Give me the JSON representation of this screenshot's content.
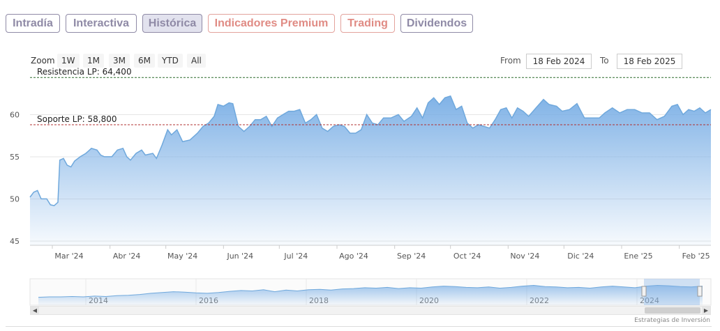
{
  "tabs": [
    {
      "label": "Intradía",
      "style": "gray",
      "active": false
    },
    {
      "label": "Interactiva",
      "style": "gray",
      "active": false
    },
    {
      "label": "Histórica",
      "style": "gray",
      "active": true
    },
    {
      "label": "Indicadores Premium",
      "style": "red",
      "active": false
    },
    {
      "label": "Trading",
      "style": "red",
      "active": false
    },
    {
      "label": "Dividendos",
      "style": "gray",
      "active": false
    }
  ],
  "range_selector": {
    "zoom_label": "Zoom",
    "buttons": [
      "1W",
      "1M",
      "3M",
      "6M",
      "YTD",
      "All"
    ],
    "from_label": "From",
    "from_value": "18 Feb 2024",
    "to_label": "To",
    "to_value": "18 Feb 2025"
  },
  "colors": {
    "series": "#6fa8dc",
    "resistance": "#2a6a2a",
    "support": "#b03030",
    "tab_gray": "#8f8aa6",
    "tab_red": "#e08b84"
  },
  "credits": "Estrategias de Inversión",
  "chart_data": {
    "type": "area",
    "ylim": [
      44.5,
      64.5
    ],
    "yticks": [
      45,
      50,
      55,
      60
    ],
    "x_start": "2024-02-18",
    "x_end": "2025-02-18",
    "x_labels": [
      "Mar '24",
      "Abr '24",
      "May '24",
      "Jun '24",
      "Jul '24",
      "Ago '24",
      "Sep '24",
      "Oct '24",
      "Nov '24",
      "Dic '24",
      "Ene '25",
      "Feb '25"
    ],
    "x_label_dates": [
      "2024-03-01",
      "2024-04-01",
      "2024-05-01",
      "2024-06-01",
      "2024-07-01",
      "2024-08-01",
      "2024-09-01",
      "2024-10-01",
      "2024-11-01",
      "2024-12-01",
      "2025-01-01",
      "2025-02-01"
    ],
    "lines": [
      {
        "label": "Resistencia LP: 64,400",
        "value": 64.4,
        "style": "dashed",
        "color": "#2a6a2a"
      },
      {
        "label": "Soporte LP: 58,800",
        "value": 58.8,
        "style": "dashed",
        "color": "#b03030"
      }
    ],
    "series": [
      {
        "points": [
          [
            "2024-02-18",
            50.2
          ],
          [
            "2024-02-20",
            50.8
          ],
          [
            "2024-02-22",
            51.0
          ],
          [
            "2024-02-24",
            50.0
          ],
          [
            "2024-02-27",
            50.0
          ],
          [
            "2024-02-29",
            49.3
          ],
          [
            "2024-03-02",
            49.2
          ],
          [
            "2024-03-04",
            49.6
          ],
          [
            "2024-03-05",
            54.6
          ],
          [
            "2024-03-07",
            54.8
          ],
          [
            "2024-03-09",
            54.0
          ],
          [
            "2024-03-11",
            53.8
          ],
          [
            "2024-03-13",
            54.5
          ],
          [
            "2024-03-16",
            55.0
          ],
          [
            "2024-03-19",
            55.4
          ],
          [
            "2024-03-22",
            56.0
          ],
          [
            "2024-03-25",
            55.8
          ],
          [
            "2024-03-27",
            55.2
          ],
          [
            "2024-03-29",
            55.0
          ],
          [
            "2024-04-02",
            55.0
          ],
          [
            "2024-04-05",
            55.8
          ],
          [
            "2024-04-08",
            56.0
          ],
          [
            "2024-04-10",
            55.0
          ],
          [
            "2024-04-12",
            54.6
          ],
          [
            "2024-04-15",
            55.4
          ],
          [
            "2024-04-18",
            55.8
          ],
          [
            "2024-04-20",
            55.2
          ],
          [
            "2024-04-24",
            55.4
          ],
          [
            "2024-04-26",
            54.8
          ],
          [
            "2024-04-29",
            56.4
          ],
          [
            "2024-05-02",
            58.2
          ],
          [
            "2024-05-04",
            57.6
          ],
          [
            "2024-05-07",
            58.2
          ],
          [
            "2024-05-10",
            56.8
          ],
          [
            "2024-05-14",
            57.0
          ],
          [
            "2024-05-18",
            57.8
          ],
          [
            "2024-05-21",
            58.6
          ],
          [
            "2024-05-24",
            59.0
          ],
          [
            "2024-05-27",
            59.8
          ],
          [
            "2024-05-29",
            61.2
          ],
          [
            "2024-06-01",
            61.0
          ],
          [
            "2024-06-04",
            61.4
          ],
          [
            "2024-06-06",
            61.3
          ],
          [
            "2024-06-09",
            58.6
          ],
          [
            "2024-06-12",
            58.0
          ],
          [
            "2024-06-15",
            58.6
          ],
          [
            "2024-06-18",
            59.4
          ],
          [
            "2024-06-21",
            59.4
          ],
          [
            "2024-06-24",
            59.8
          ],
          [
            "2024-06-27",
            58.6
          ],
          [
            "2024-06-30",
            59.6
          ],
          [
            "2024-07-03",
            60.0
          ],
          [
            "2024-07-06",
            60.4
          ],
          [
            "2024-07-09",
            60.4
          ],
          [
            "2024-07-12",
            60.6
          ],
          [
            "2024-07-15",
            59.0
          ],
          [
            "2024-07-18",
            59.4
          ],
          [
            "2024-07-21",
            60.0
          ],
          [
            "2024-07-24",
            58.4
          ],
          [
            "2024-07-27",
            58.0
          ],
          [
            "2024-07-30",
            58.6
          ],
          [
            "2024-08-02",
            58.8
          ],
          [
            "2024-08-05",
            58.6
          ],
          [
            "2024-08-08",
            57.8
          ],
          [
            "2024-08-11",
            57.8
          ],
          [
            "2024-08-14",
            58.2
          ],
          [
            "2024-08-17",
            60.0
          ],
          [
            "2024-08-20",
            59.0
          ],
          [
            "2024-08-23",
            58.8
          ],
          [
            "2024-08-26",
            59.6
          ],
          [
            "2024-08-30",
            59.6
          ],
          [
            "2024-09-03",
            60.0
          ],
          [
            "2024-09-06",
            59.2
          ],
          [
            "2024-09-10",
            59.8
          ],
          [
            "2024-09-13",
            60.8
          ],
          [
            "2024-09-16",
            59.6
          ],
          [
            "2024-09-19",
            61.4
          ],
          [
            "2024-09-22",
            62.0
          ],
          [
            "2024-09-25",
            61.2
          ],
          [
            "2024-09-28",
            62.0
          ],
          [
            "2024-10-01",
            62.2
          ],
          [
            "2024-10-04",
            60.6
          ],
          [
            "2024-10-07",
            61.0
          ],
          [
            "2024-10-10",
            59.0
          ],
          [
            "2024-10-13",
            58.4
          ],
          [
            "2024-10-16",
            58.8
          ],
          [
            "2024-10-19",
            58.6
          ],
          [
            "2024-10-22",
            58.4
          ],
          [
            "2024-10-25",
            59.4
          ],
          [
            "2024-10-28",
            60.6
          ],
          [
            "2024-10-31",
            60.8
          ],
          [
            "2024-11-03",
            59.6
          ],
          [
            "2024-11-06",
            60.8
          ],
          [
            "2024-11-09",
            60.4
          ],
          [
            "2024-11-12",
            59.8
          ],
          [
            "2024-11-16",
            60.8
          ],
          [
            "2024-11-20",
            61.8
          ],
          [
            "2024-11-23",
            61.2
          ],
          [
            "2024-11-27",
            61.0
          ],
          [
            "2024-11-30",
            60.4
          ],
          [
            "2024-12-04",
            60.6
          ],
          [
            "2024-12-08",
            61.3
          ],
          [
            "2024-12-12",
            59.6
          ],
          [
            "2024-12-16",
            59.6
          ],
          [
            "2024-12-20",
            59.6
          ],
          [
            "2024-12-23",
            60.2
          ],
          [
            "2024-12-27",
            60.8
          ],
          [
            "2024-12-31",
            60.2
          ],
          [
            "2025-01-04",
            60.6
          ],
          [
            "2025-01-08",
            60.6
          ],
          [
            "2025-01-12",
            60.2
          ],
          [
            "2025-01-16",
            60.2
          ],
          [
            "2025-01-20",
            59.4
          ],
          [
            "2025-01-24",
            59.8
          ],
          [
            "2025-01-28",
            61.0
          ],
          [
            "2025-01-31",
            61.2
          ],
          [
            "2025-02-03",
            60.0
          ],
          [
            "2025-02-06",
            60.6
          ],
          [
            "2025-02-09",
            60.4
          ],
          [
            "2025-02-12",
            60.8
          ],
          [
            "2025-02-15",
            60.2
          ],
          [
            "2025-02-18",
            60.6
          ]
        ]
      }
    ],
    "navigator": {
      "x_labels": [
        "2014",
        "2016",
        "2018",
        "2020",
        "2022",
        "2024"
      ],
      "values": [
        20,
        21,
        21,
        22,
        21,
        23,
        22,
        24,
        25,
        27,
        30,
        32,
        34,
        33,
        31,
        30,
        32,
        35,
        37,
        36,
        39,
        34,
        38,
        36,
        39,
        40,
        38,
        41,
        42,
        44,
        43,
        45,
        42,
        44,
        43,
        46,
        48,
        47,
        45,
        44,
        46,
        43,
        45,
        48,
        50,
        47,
        46,
        44,
        45,
        43,
        46,
        48,
        46,
        44,
        48,
        50,
        49,
        47,
        46,
        48
      ]
    }
  }
}
